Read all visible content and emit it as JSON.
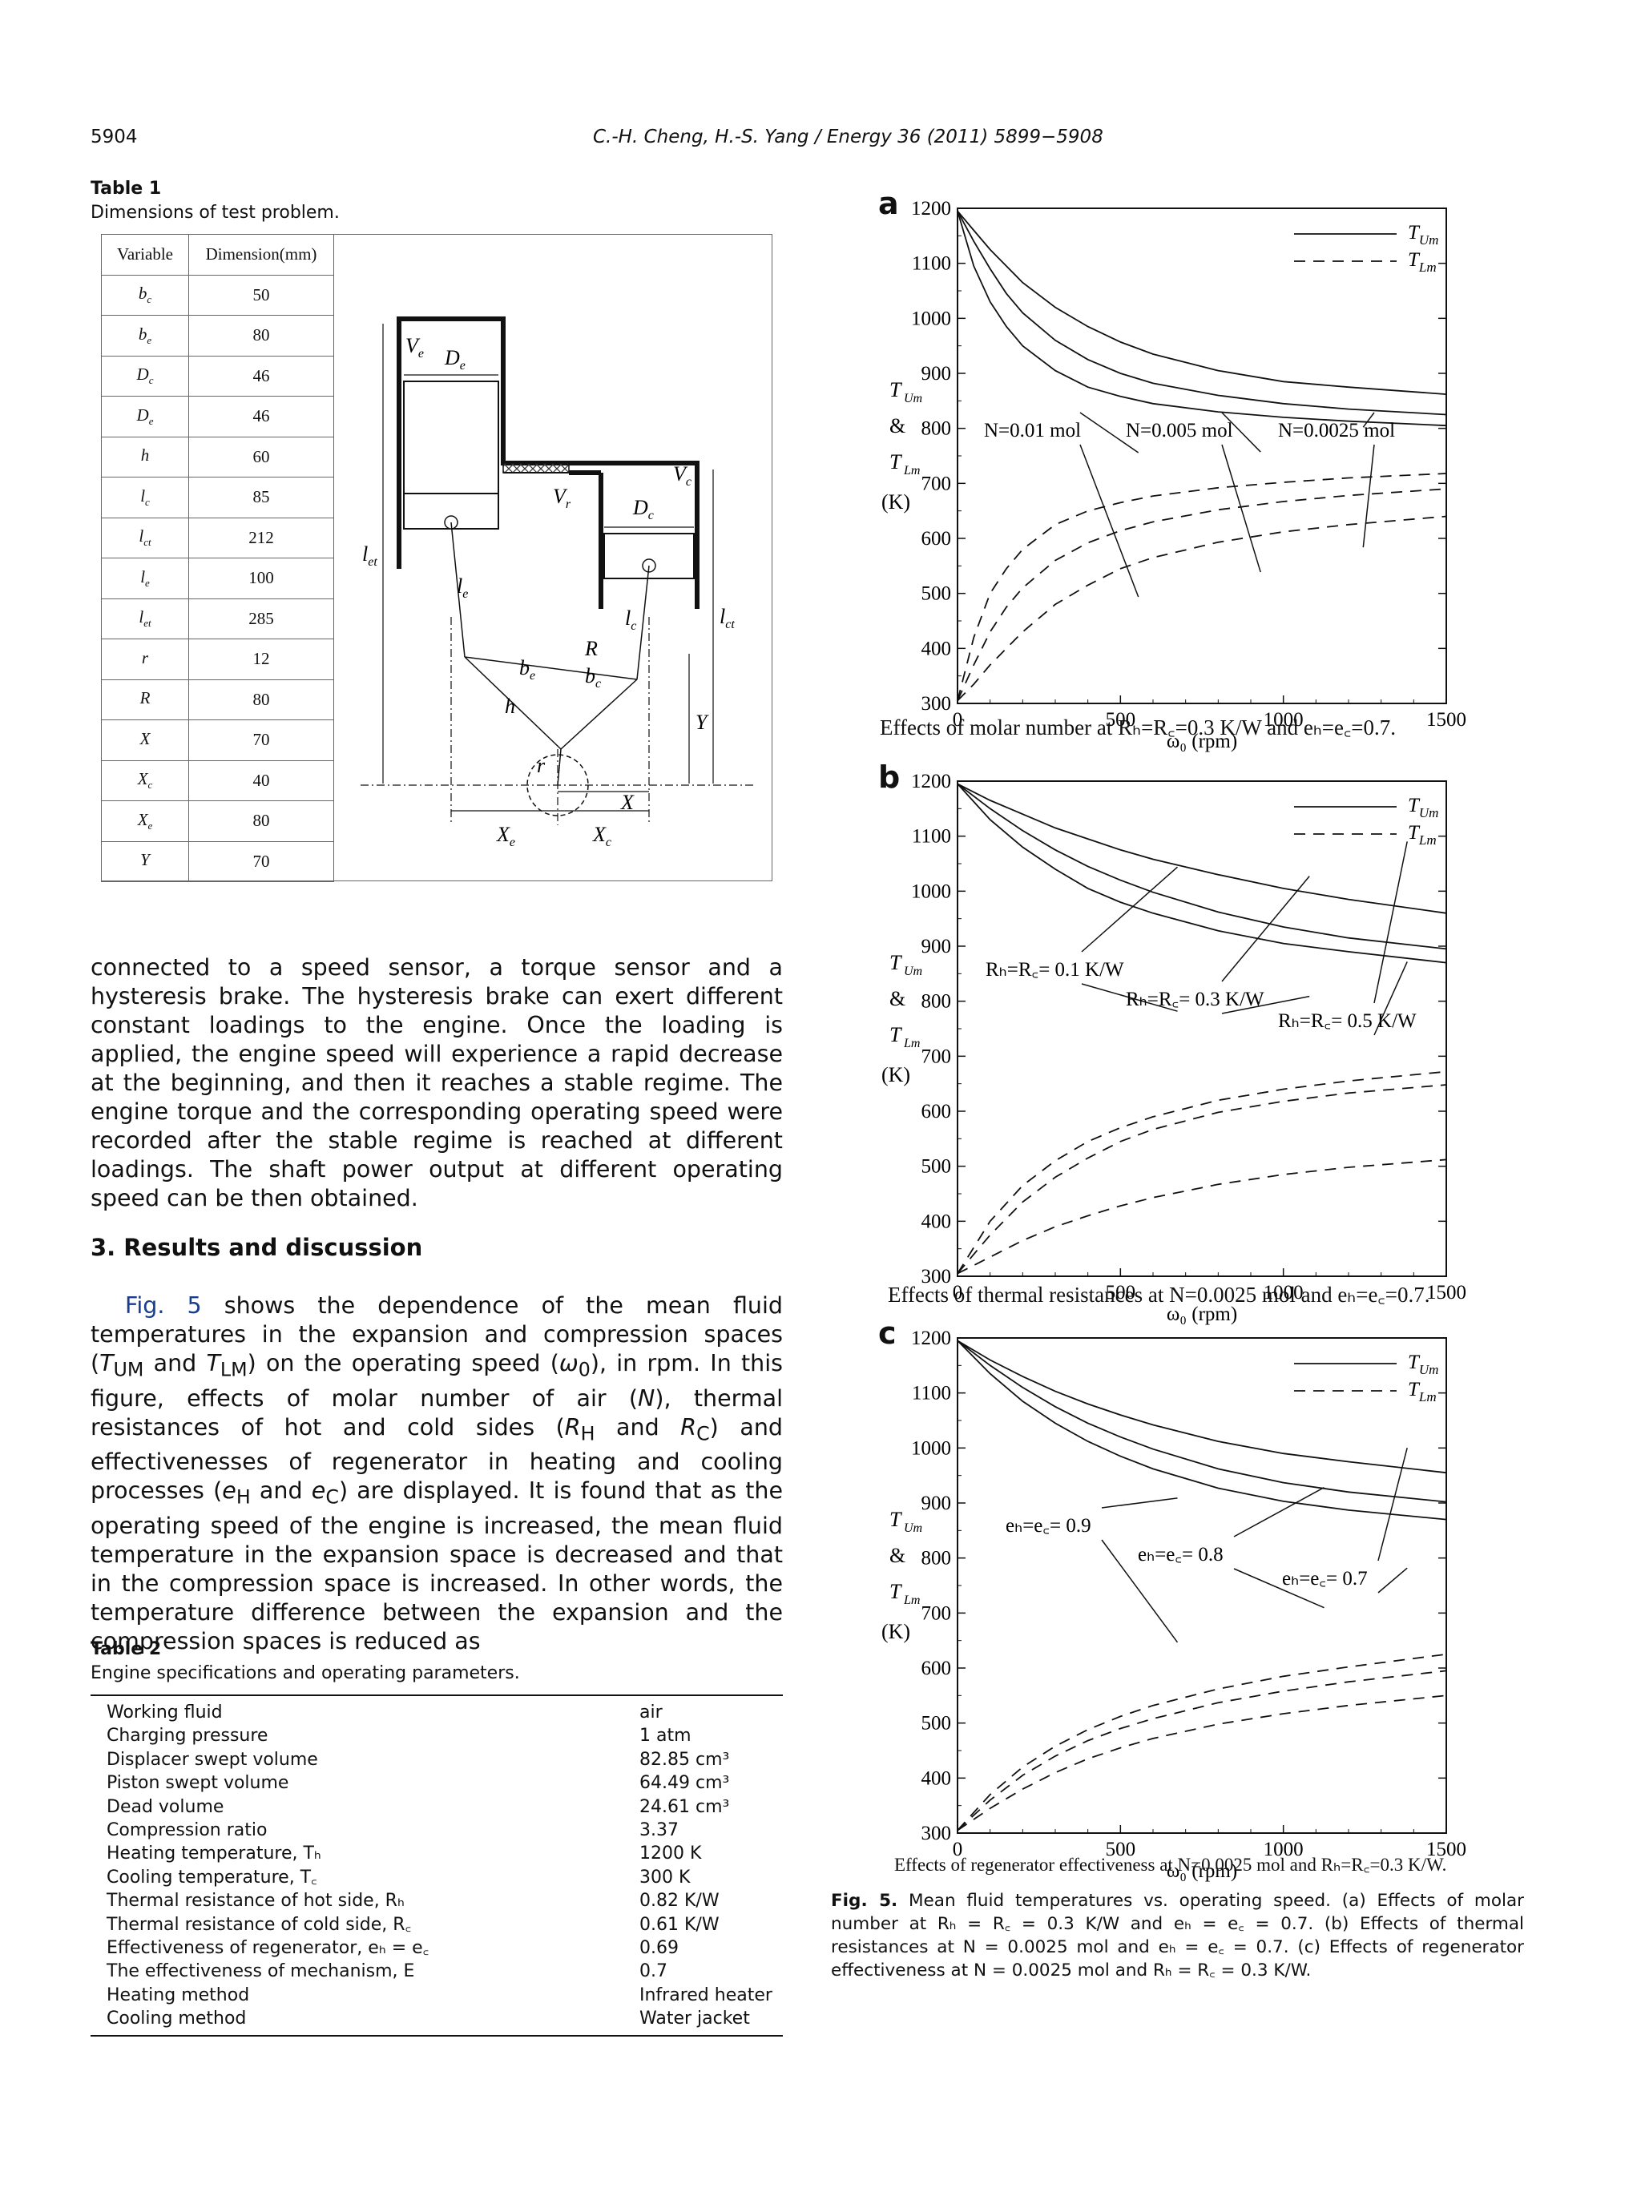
{
  "header": {
    "page_number": "5904",
    "running_title": "C.-H. Cheng, H.-S. Yang / Energy 36 (2011) 5899−5908"
  },
  "table1": {
    "title": "Table 1",
    "caption": "Dimensions of test problem.",
    "col_headers": [
      "Variable",
      "Dimension(mm)"
    ],
    "rows": [
      [
        "b",
        "c",
        "50"
      ],
      [
        "b",
        "e",
        "80"
      ],
      [
        "D",
        "c",
        "46"
      ],
      [
        "D",
        "e",
        "46"
      ],
      [
        "h",
        "",
        "60"
      ],
      [
        "l",
        "c",
        "85"
      ],
      [
        "l",
        "ct",
        "212"
      ],
      [
        "l",
        "e",
        "100"
      ],
      [
        "l",
        "et",
        "285"
      ],
      [
        "r",
        "",
        "12"
      ],
      [
        "R",
        "",
        "80"
      ],
      [
        "X",
        "",
        "70"
      ],
      [
        "X",
        "c",
        "40"
      ],
      [
        "X",
        "e",
        "80"
      ],
      [
        "Y",
        "",
        "70"
      ]
    ]
  },
  "diagram_labels": {
    "Ve": [
      "V",
      "e"
    ],
    "De": [
      "D",
      "e"
    ],
    "Vr": [
      "V",
      "r"
    ],
    "Dc": [
      "D",
      "c"
    ],
    "Vc": [
      "V",
      "c"
    ],
    "let": [
      "l",
      "et"
    ],
    "le": [
      "l",
      "e"
    ],
    "lc": [
      "l",
      "c"
    ],
    "lct": [
      "l",
      "ct"
    ],
    "R": "R",
    "be": [
      "b",
      "e"
    ],
    "bc": [
      "b",
      "c"
    ],
    "h": "h",
    "Y": "Y",
    "r": "r",
    "X": "X",
    "Xe": [
      "X",
      "e"
    ],
    "Xc": [
      "X",
      "c"
    ]
  },
  "body": {
    "para1": "connected to a speed sensor, a torque sensor and a hysteresis brake. The hysteresis brake can exert different constant loadings to the engine. Once the loading is applied, the engine speed will experience a rapid decrease at the beginning, and then it reaches a stable regime. The engine torque and the corresponding operating speed were recorded after the stable regime is reached at different loadings. The shaft power output at different operating speed can be then obtained.",
    "section_title": "3.  Results and discussion",
    "para2_link": "Fig. 5",
    "para2_a": " shows the dependence of the mean fluid temperatures in the expansion and compression spaces (",
    "para2_b": " and ",
    "para2_c": ") on the operating speed (",
    "para2_d": "), in rpm. In this figure, effects of molar number of air (",
    "para2_e": "), thermal resistances of hot and cold sides (",
    "para2_f": " and ",
    "para2_g": ") and effectivenesses of regenerator in heating and cooling processes (",
    "para2_h": " and ",
    "para2_i": ") are displayed. It is found that as the operating speed of the engine is increased, the mean fluid temperature in the expansion space is decreased and that in the compression space is increased. In other words, the temperature difference between the expansion and the compression spaces is reduced as",
    "sym_TUM": [
      "T",
      "UM"
    ],
    "sym_TLM": [
      "T",
      "LM"
    ],
    "sym_w0": [
      "ω",
      "0"
    ],
    "sym_N": "N",
    "sym_RH": [
      "R",
      "H"
    ],
    "sym_RC": [
      "R",
      "C"
    ],
    "sym_eH": [
      "e",
      "H"
    ],
    "sym_eC": [
      "e",
      "C"
    ]
  },
  "table2": {
    "title": "Table 2",
    "caption": "Engine specifications and operating parameters.",
    "rows": [
      {
        "k": "Working fluid",
        "v": "air"
      },
      {
        "k": "Charging pressure",
        "v": "1 atm"
      },
      {
        "k": "Displacer swept volume",
        "v": "82.85 cm³"
      },
      {
        "k": "Piston swept volume",
        "v": "64.49 cm³"
      },
      {
        "k": "Dead volume",
        "v": "24.61 cm³"
      },
      {
        "k": "Compression ratio",
        "v": "3.37"
      },
      {
        "k": "Heating temperature, Tₕ",
        "v": "1200 K"
      },
      {
        "k": "Cooling temperature, T꜀",
        "v": "300 K"
      },
      {
        "k": "Thermal resistance of hot side, Rₕ",
        "v": "0.82 K/W"
      },
      {
        "k": "Thermal resistance of cold side, R꜀",
        "v": "0.61 K/W"
      },
      {
        "k": "Effectiveness of regenerator, eₕ = e꜀",
        "v": "0.69"
      },
      {
        "k": "The effectiveness of mechanism, E",
        "v": "0.7"
      },
      {
        "k": "Heating method",
        "v": "Infrared heater"
      },
      {
        "k": "Cooling method",
        "v": "Water jacket"
      }
    ]
  },
  "chart_data": [
    {
      "type": "line",
      "panel": "a",
      "caption": "Effects of molar number at Rₕ=R꜀=0.3 K/W and eₕ=e꜀=0.7.",
      "xlabel": "ω₀ (rpm)",
      "ylabel": [
        "T",
        "Um",
        "&",
        "T",
        "Lm",
        "(K)"
      ],
      "xlim": [
        0,
        1500
      ],
      "ylim": [
        300,
        1200
      ],
      "x_ticks": [
        0,
        500,
        1000,
        1500
      ],
      "y_ticks": [
        300,
        400,
        500,
        600,
        700,
        800,
        900,
        1000,
        1100,
        1200
      ],
      "legend": {
        "position": "top-right",
        "entries": [
          [
            "T",
            "Um",
            "solid"
          ],
          [
            "T",
            "Lm",
            "dashed"
          ]
        ]
      },
      "annotations": [
        "N=0.01 mol",
        "N=0.005 mol",
        "N=0.0025 mol"
      ],
      "series": [
        {
          "kind": "TUm",
          "x": [
            0,
            50,
            100,
            150,
            200,
            300,
            400,
            500,
            600,
            800,
            1000,
            1200,
            1500
          ],
          "values": [
            1195,
            1095,
            1030,
            985,
            950,
            905,
            875,
            858,
            845,
            830,
            820,
            813,
            805
          ]
        },
        {
          "kind": "TUm",
          "x": [
            0,
            50,
            100,
            150,
            200,
            300,
            400,
            500,
            600,
            800,
            1000,
            1200,
            1500
          ],
          "values": [
            1195,
            1140,
            1090,
            1045,
            1010,
            960,
            925,
            900,
            882,
            860,
            845,
            835,
            825
          ]
        },
        {
          "kind": "TUm",
          "x": [
            0,
            50,
            100,
            150,
            200,
            300,
            400,
            500,
            600,
            800,
            1000,
            1200,
            1500
          ],
          "values": [
            1195,
            1160,
            1125,
            1095,
            1065,
            1020,
            985,
            957,
            935,
            905,
            885,
            875,
            862
          ]
        },
        {
          "kind": "TLm",
          "x": [
            0,
            50,
            100,
            150,
            200,
            300,
            400,
            500,
            600,
            800,
            1000,
            1200,
            1500
          ],
          "values": [
            305,
            420,
            500,
            545,
            580,
            625,
            650,
            665,
            677,
            692,
            702,
            710,
            718
          ]
        },
        {
          "kind": "TLm",
          "x": [
            0,
            50,
            100,
            150,
            200,
            300,
            400,
            500,
            600,
            800,
            1000,
            1200,
            1500
          ],
          "values": [
            305,
            370,
            430,
            475,
            510,
            560,
            592,
            614,
            630,
            652,
            667,
            678,
            690
          ]
        },
        {
          "kind": "TLm",
          "x": [
            0,
            50,
            100,
            150,
            200,
            300,
            400,
            500,
            600,
            800,
            1000,
            1200,
            1500
          ],
          "values": [
            305,
            335,
            370,
            400,
            430,
            480,
            515,
            545,
            565,
            593,
            612,
            625,
            640
          ]
        }
      ]
    },
    {
      "type": "line",
      "panel": "b",
      "caption": "Effects of thermal resistances at N=0.0025 mol and eₕ=e꜀=0.7.",
      "xlabel": "ω₀ (rpm)",
      "ylabel": [
        "T",
        "Um",
        "&",
        "T",
        "Lm",
        "(K)"
      ],
      "xlim": [
        0,
        1500
      ],
      "ylim": [
        300,
        1200
      ],
      "x_ticks": [
        0,
        500,
        1000,
        1500
      ],
      "y_ticks": [
        300,
        400,
        500,
        600,
        700,
        800,
        900,
        1000,
        1100,
        1200
      ],
      "legend": {
        "position": "top-right",
        "entries": [
          [
            "T",
            "Um",
            "solid"
          ],
          [
            "T",
            "Lm",
            "dashed"
          ]
        ]
      },
      "annotations": [
        "Rₕ=R꜀= 0.1 K/W",
        "Rₕ=R꜀= 0.3 K/W",
        "Rₕ=R꜀= 0.5 K/W"
      ],
      "series": [
        {
          "kind": "TUm",
          "x": [
            0,
            100,
            200,
            300,
            400,
            500,
            600,
            800,
            1000,
            1200,
            1500
          ],
          "values": [
            1195,
            1130,
            1080,
            1040,
            1005,
            980,
            960,
            928,
            905,
            890,
            870
          ]
        },
        {
          "kind": "TUm",
          "x": [
            0,
            100,
            200,
            300,
            400,
            500,
            600,
            800,
            1000,
            1200,
            1500
          ],
          "values": [
            1195,
            1150,
            1110,
            1075,
            1045,
            1020,
            998,
            962,
            935,
            915,
            895
          ]
        },
        {
          "kind": "TUm",
          "x": [
            0,
            100,
            200,
            300,
            400,
            500,
            600,
            800,
            1000,
            1200,
            1500
          ],
          "values": [
            1195,
            1165,
            1140,
            1115,
            1095,
            1075,
            1058,
            1030,
            1005,
            985,
            960
          ]
        },
        {
          "kind": "TLm",
          "x": [
            0,
            100,
            200,
            300,
            400,
            500,
            600,
            800,
            1000,
            1200,
            1500
          ],
          "values": [
            305,
            400,
            465,
            510,
            545,
            570,
            590,
            620,
            640,
            655,
            672
          ]
        },
        {
          "kind": "TLm",
          "x": [
            0,
            100,
            200,
            300,
            400,
            500,
            600,
            800,
            1000,
            1200,
            1500
          ],
          "values": [
            305,
            375,
            435,
            480,
            515,
            545,
            567,
            598,
            618,
            633,
            648
          ]
        },
        {
          "kind": "TLm",
          "x": [
            0,
            100,
            200,
            300,
            400,
            500,
            600,
            800,
            1000,
            1200,
            1500
          ],
          "values": [
            305,
            335,
            365,
            390,
            410,
            428,
            443,
            467,
            485,
            498,
            512
          ]
        }
      ]
    },
    {
      "type": "line",
      "panel": "c",
      "caption": "Effects of regenerator effectiveness at N=0.0025 mol and Rₕ=R꜀=0.3 K/W.",
      "xlabel": "ω₀ (rpm)",
      "ylabel": [
        "T",
        "Um",
        "&",
        "T",
        "Lm",
        "(K)"
      ],
      "xlim": [
        0,
        1500
      ],
      "ylim": [
        300,
        1200
      ],
      "x_ticks": [
        0,
        500,
        1000,
        1500
      ],
      "y_ticks": [
        300,
        400,
        500,
        600,
        700,
        800,
        900,
        1000,
        1100,
        1200
      ],
      "legend": {
        "position": "top-right",
        "entries": [
          [
            "T",
            "Um",
            "solid"
          ],
          [
            "T",
            "Lm",
            "dashed"
          ]
        ]
      },
      "annotations": [
        "eₕ=e꜀= 0.9",
        "eₕ=e꜀= 0.8",
        "eₕ=e꜀= 0.7"
      ],
      "series": [
        {
          "kind": "TUm",
          "x": [
            0,
            100,
            200,
            300,
            400,
            500,
            600,
            800,
            1000,
            1200,
            1500
          ],
          "values": [
            1195,
            1135,
            1085,
            1045,
            1012,
            985,
            962,
            927,
            903,
            887,
            870
          ]
        },
        {
          "kind": "TUm",
          "x": [
            0,
            100,
            200,
            300,
            400,
            500,
            600,
            800,
            1000,
            1200,
            1500
          ],
          "values": [
            1195,
            1150,
            1110,
            1075,
            1045,
            1020,
            998,
            962,
            937,
            920,
            902
          ]
        },
        {
          "kind": "TUm",
          "x": [
            0,
            100,
            200,
            300,
            400,
            500,
            600,
            800,
            1000,
            1200,
            1500
          ],
          "values": [
            1195,
            1160,
            1130,
            1103,
            1080,
            1060,
            1042,
            1012,
            990,
            975,
            955
          ]
        },
        {
          "kind": "TLm",
          "x": [
            0,
            100,
            200,
            300,
            400,
            500,
            600,
            800,
            1000,
            1200,
            1500
          ],
          "values": [
            305,
            370,
            420,
            458,
            488,
            512,
            532,
            562,
            585,
            602,
            625
          ]
        },
        {
          "kind": "TLm",
          "x": [
            0,
            100,
            200,
            300,
            400,
            500,
            600,
            800,
            1000,
            1200,
            1500
          ],
          "values": [
            305,
            360,
            405,
            440,
            468,
            490,
            508,
            537,
            558,
            575,
            595
          ]
        },
        {
          "kind": "TLm",
          "x": [
            0,
            100,
            200,
            300,
            400,
            500,
            600,
            800,
            1000,
            1200,
            1500
          ],
          "values": [
            305,
            345,
            380,
            410,
            435,
            455,
            472,
            498,
            517,
            532,
            550
          ]
        }
      ]
    }
  ],
  "figure_caption": {
    "label": "Fig. 5.",
    "text": " Mean fluid temperatures vs. operating speed. (a) Effects of molar number at Rₕ = R꜀ = 0.3 K/W and eₕ = e꜀ = 0.7. (b) Effects of thermal resistances at N = 0.0025 mol and eₕ = e꜀ = 0.7. (c) Effects of regenerator effectiveness at N = 0.0025 mol and Rₕ = R꜀ = 0.3 K/W."
  }
}
